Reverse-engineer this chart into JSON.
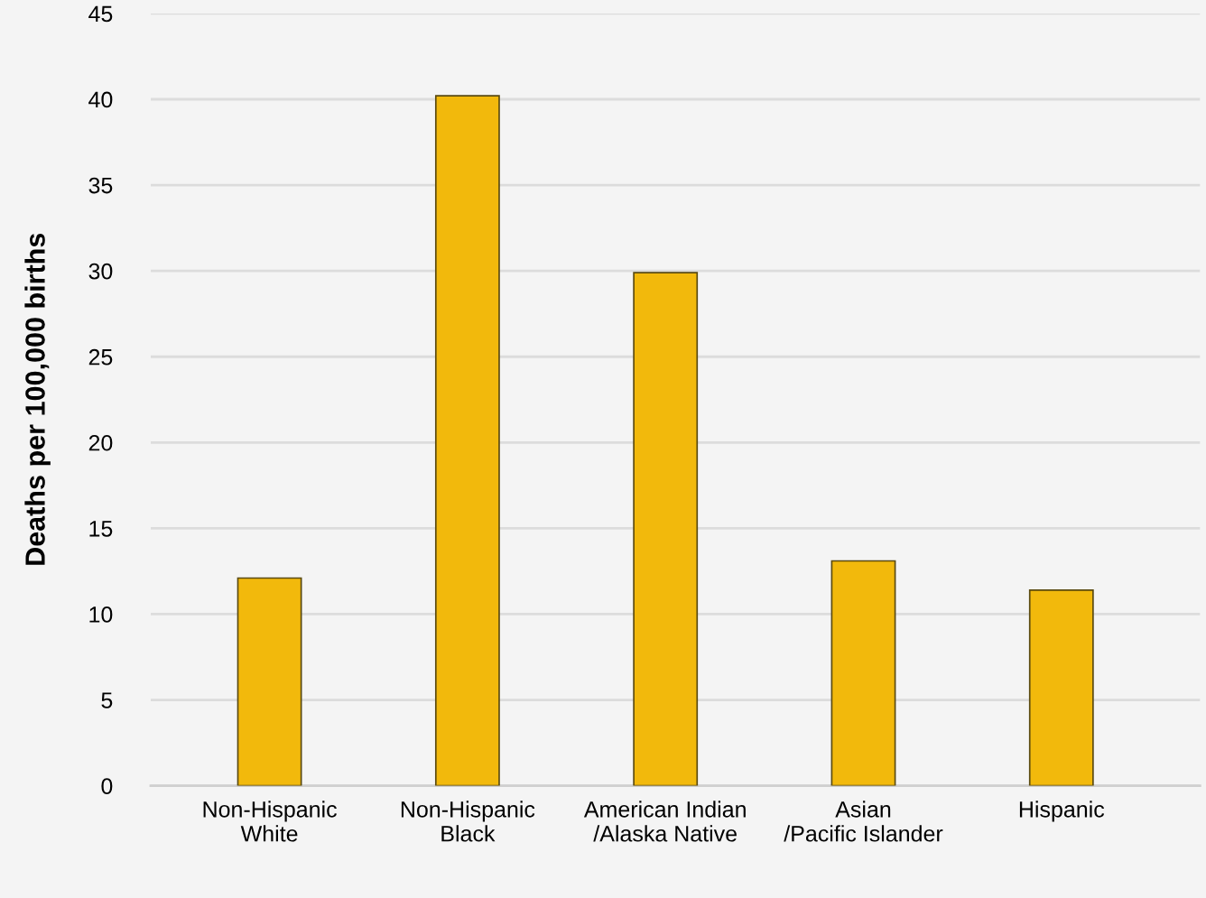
{
  "chart_data": {
    "type": "bar",
    "ylabel": "Deaths per 100,000 births",
    "categories": [
      "Non-Hispanic\nWhite",
      "Non-Hispanic\nBlack",
      "American Indian\n/Alaska Native",
      "Asian\n/Pacific Islander",
      "Hispanic"
    ],
    "values": [
      12.1,
      40.2,
      29.9,
      13.1,
      11.4
    ],
    "color": "#f2b90c",
    "ylim": [
      0,
      45
    ],
    "yticks": [
      0,
      5,
      10,
      15,
      20,
      25,
      30,
      35,
      40,
      45
    ],
    "grid": "y"
  }
}
